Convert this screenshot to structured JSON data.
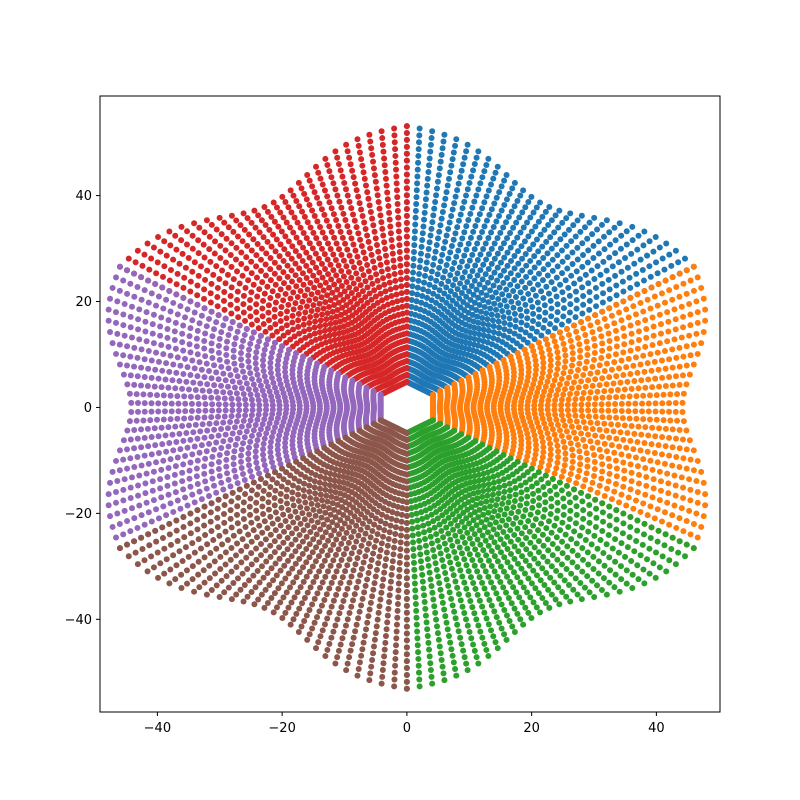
{
  "chart_data": {
    "type": "scatter",
    "title": "",
    "xlabel": "",
    "ylabel": "",
    "xlim": [
      -49.2,
      50.2
    ],
    "ylim": [
      -57.5,
      58.8
    ],
    "grid": false,
    "legend": "none",
    "xticks": [
      -40,
      -20,
      0,
      20,
      40
    ],
    "yticks": [
      -40,
      -20,
      0,
      20,
      40
    ],
    "xtick_labels": [
      "−40",
      "−20",
      "0",
      "20",
      "40"
    ],
    "ytick_labels": [
      "−40",
      "−20",
      "0",
      "20",
      "40"
    ],
    "pattern": {
      "description_free_params": true,
      "rays_per_group": 28,
      "points_per_ray": 38,
      "inner_radius": 4.2,
      "outer_radius": 46,
      "sector_angle_deg": 60
    },
    "series": [
      {
        "center_angle_deg": 60,
        "color": "#1f77b4"
      },
      {
        "center_angle_deg": 0,
        "color": "#ff7f0e"
      },
      {
        "center_angle_deg": -60,
        "color": "#2ca02c"
      },
      {
        "center_angle_deg": 120,
        "color": "#d62728"
      },
      {
        "center_angle_deg": 180,
        "color": "#9467bd"
      },
      {
        "center_angle_deg": -120,
        "color": "#8c564b"
      }
    ]
  }
}
